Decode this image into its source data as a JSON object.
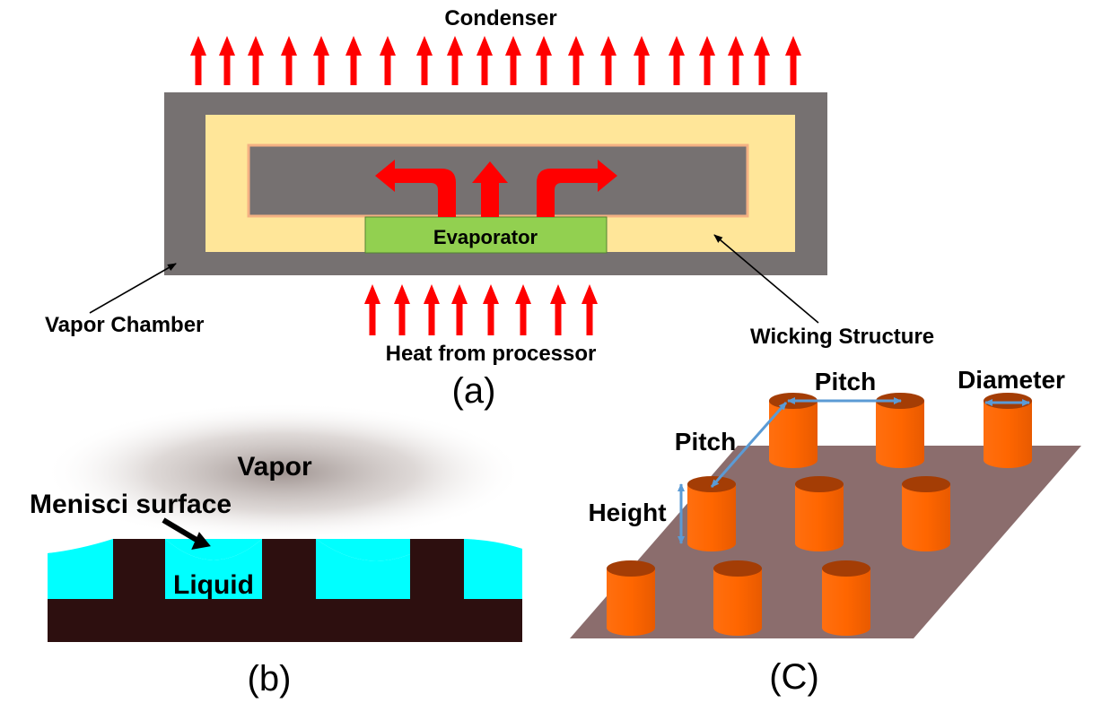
{
  "panel_a": {
    "condenser_label": "Condenser",
    "evaporator_label": "Evaporator",
    "vapor_chamber_label": "Vapor Chamber",
    "wicking_structure_label": "Wicking Structure",
    "heat_label": "Heat from processor",
    "panel_label": "(a)"
  },
  "panel_b": {
    "vapor_label": "Vapor",
    "menisci_label": "Menisci surface",
    "liquid_label": "Liquid",
    "panel_label": "(b)"
  },
  "panel_c": {
    "pitch_top_label": "Pitch",
    "pitch_side_label": "Pitch",
    "diameter_label": "Diameter",
    "height_label": "Height",
    "panel_label": "(C)"
  },
  "colors": {
    "chamber": "#767171",
    "wick": "#ffe699",
    "evaporator": "#92d050",
    "heat_arrow": "#ff0000",
    "liquid": "#00ffff",
    "solid": "#2d0f0f",
    "plate": "#8b6d6d",
    "pillar": "#ff6600",
    "pillar_top": "#a43d05",
    "dimension": "#5b9bd5"
  }
}
